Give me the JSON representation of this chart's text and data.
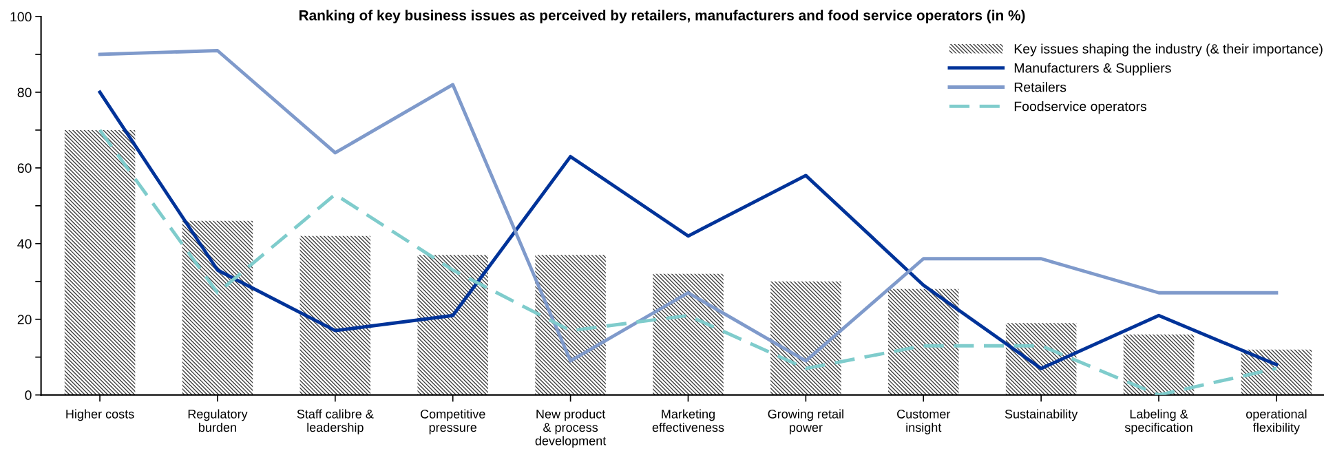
{
  "chart_data": {
    "type": "bar",
    "title": "Ranking of key business issues as perceived by retailers, manufacturers and food service operators (in %)",
    "categories": [
      "Higher costs",
      "Regulatory\nburden",
      "Staff calibre &\nleadership",
      "Competitive\npressure",
      "New product\n& process\ndevelopment",
      "Marketing\neffectiveness",
      "Growing retail\npower",
      "Customer\ninsight",
      "Sustainability",
      "Labeling &\nspecification",
      "operational\nflexibility"
    ],
    "series": [
      {
        "name": "Key issues shaping the industry (& their importance)",
        "color": "#404040",
        "values": [
          70,
          46,
          42,
          37,
          37,
          32,
          30,
          28,
          19,
          16,
          12
        ]
      },
      {
        "name": "Manufacturers & Suppliers",
        "type": "line",
        "color": "#003399",
        "line_style": "solid",
        "values": [
          80,
          33,
          17,
          21,
          63,
          42,
          58,
          29,
          7,
          21,
          8
        ]
      },
      {
        "name": "Retailers",
        "type": "line",
        "color": "#7f9acb",
        "line_style": "solid",
        "values": [
          90,
          91,
          64,
          82,
          9,
          27,
          9,
          36,
          36,
          27,
          27
        ]
      },
      {
        "name": "Foodservice operators",
        "type": "line",
        "color": "#7fcccc",
        "line_style": "dashed",
        "values": [
          70,
          27,
          53,
          33,
          17,
          21,
          7,
          13,
          13,
          0,
          7
        ]
      }
    ],
    "ylim": [
      0,
      100
    ],
    "yticks": [
      0,
      {
        "value": 10,
        "label": null
      },
      20,
      {
        "value": 30,
        "label": null
      },
      40,
      {
        "value": 50,
        "label": null
      },
      60,
      {
        "value": 70,
        "label": null
      },
      80,
      {
        "value": 90,
        "label": null
      },
      100
    ],
    "grid": false,
    "legend": "top right",
    "marker": "none"
  }
}
